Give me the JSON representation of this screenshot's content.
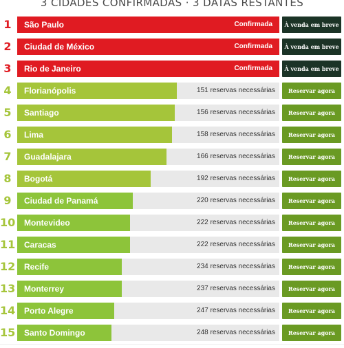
{
  "header": {
    "title": "3 CIDADES CONFIRMADAS · 3 DATAS RESTANTES"
  },
  "colors": {
    "confirmed_bar": "#e01b22",
    "confirmed_rank": "#e01b22",
    "pending_bar_strong": "#a5c53a",
    "pending_bar_mid": "#8dc43a",
    "pending_rank": "#a5c53a",
    "track": "#e9e9e9",
    "button_soon": "#1b3326",
    "button_reserve": "#6a9a23"
  },
  "reservations_label": "reservas necessárias",
  "rows": [
    {
      "rank": "1",
      "city": "São Paulo",
      "status": "Confirmada",
      "button": "À venda em breve",
      "confirmed": true
    },
    {
      "rank": "2",
      "city": "Ciudad de México",
      "status": "Confirmada",
      "button": "À venda em breve",
      "confirmed": true
    },
    {
      "rank": "3",
      "city": "Rio de Janeiro",
      "status": "Confirmada",
      "button": "À venda em breve",
      "confirmed": true
    },
    {
      "rank": "4",
      "city": "Florianópolis",
      "needed": "151 reservas necessárias",
      "button": "Reservar agora",
      "confirmed": false,
      "progress": 0.61
    },
    {
      "rank": "5",
      "city": "Santiago",
      "needed": "156 reservas necessárias",
      "button": "Reservar agora",
      "confirmed": false,
      "progress": 0.6
    },
    {
      "rank": "6",
      "city": "Lima",
      "needed": "158 reservas necessárias",
      "button": "Reservar agora",
      "confirmed": false,
      "progress": 0.59
    },
    {
      "rank": "7",
      "city": "Guadalajara",
      "needed": "166 reservas necessárias",
      "button": "Reservar agora",
      "confirmed": false,
      "progress": 0.57
    },
    {
      "rank": "8",
      "city": "Bogotá",
      "needed": "192 reservas necessárias",
      "button": "Reservar agora",
      "confirmed": false,
      "progress": 0.51
    },
    {
      "rank": "9",
      "city": "Ciudad de Panamá",
      "needed": "220 reservas necessárias",
      "button": "Reservar agora",
      "confirmed": false,
      "progress": 0.44
    },
    {
      "rank": "10",
      "city": "Montevideo",
      "needed": "222 reservas necessárias",
      "button": "Reservar agora",
      "confirmed": false,
      "progress": 0.43
    },
    {
      "rank": "11",
      "city": "Caracas",
      "needed": "222 reservas necessárias",
      "button": "Reservar agora",
      "confirmed": false,
      "progress": 0.43
    },
    {
      "rank": "12",
      "city": "Recife",
      "needed": "234 reservas necessárias",
      "button": "Reservar agora",
      "confirmed": false,
      "progress": 0.4
    },
    {
      "rank": "13",
      "city": "Monterrey",
      "needed": "237 reservas necessárias",
      "button": "Reservar agora",
      "confirmed": false,
      "progress": 0.4
    },
    {
      "rank": "14",
      "city": "Porto Alegre",
      "needed": "247 reservas necessárias",
      "button": "Reservar agora",
      "confirmed": false,
      "progress": 0.37
    },
    {
      "rank": "15",
      "city": "Santo Domingo",
      "needed": "248 reservas necessárias",
      "button": "Reservar agora",
      "confirmed": false,
      "progress": 0.36
    }
  ]
}
